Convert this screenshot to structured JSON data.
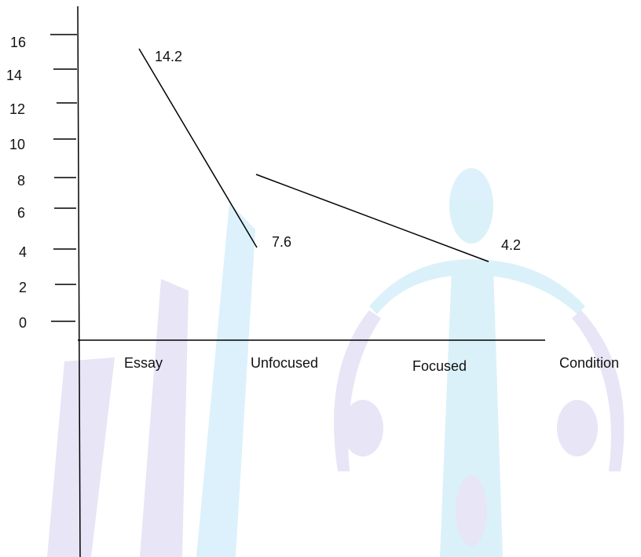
{
  "chart_data": {
    "type": "line",
    "title": "",
    "xlabel": "Condition",
    "ylabel": "",
    "categories": [
      "Essay",
      "Unfocused",
      "Focused"
    ],
    "y_ticks": [
      "0",
      "2",
      "4",
      "6",
      "8",
      "10",
      "12",
      "14",
      "16"
    ],
    "segments": [
      {
        "from": "Essay",
        "to": "Unfocused",
        "y_start": 14.2,
        "y_end": 7.6
      },
      {
        "from": "Unfocused",
        "to": "Focused",
        "y_start": 7.6,
        "y_end": 4.2
      }
    ],
    "data_labels": [
      "14.2",
      "7.6",
      "4.2"
    ],
    "grid": false,
    "legend": "none"
  },
  "colors": {
    "axis": "#000000",
    "line": "#000000",
    "watermark_blue": "#bfe6f7",
    "watermark_purple": "#d4d0ef"
  }
}
